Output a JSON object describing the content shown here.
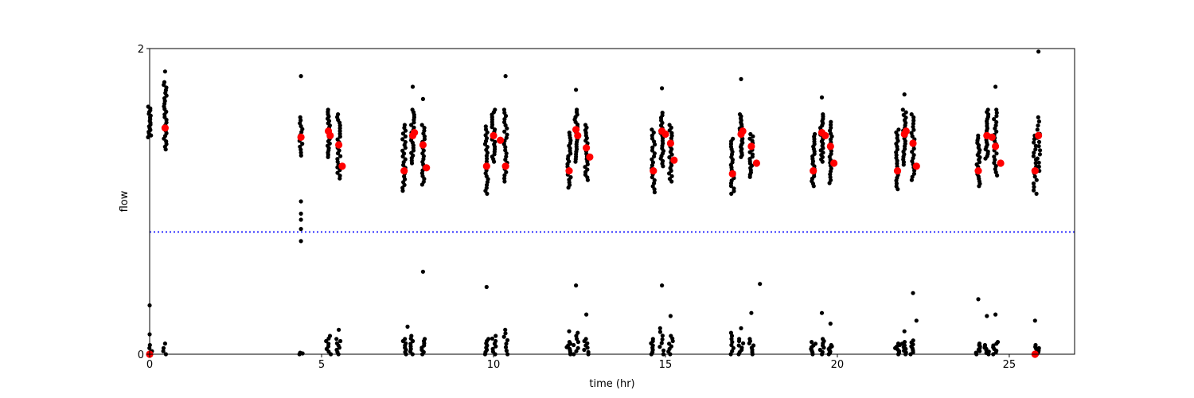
{
  "chart_data": {
    "type": "scatter",
    "xlabel": "time (hr)",
    "ylabel": "flow",
    "xlim": [
      0,
      26.9
    ],
    "ylim": [
      0,
      2
    ],
    "x_ticks": [
      0,
      5,
      10,
      15,
      20,
      25
    ],
    "y_ticks": [
      0,
      2
    ],
    "grid": false,
    "legend": "none",
    "reference_line": {
      "y": 0.8,
      "style": "dotted",
      "color": "#0000ff"
    },
    "colors": {
      "raw": "#000000",
      "summary": "#ff0000"
    },
    "raw_clusters": [
      {
        "x": 0.0,
        "y_low": 1.42,
        "y_high": 1.62,
        "n": 18
      },
      {
        "x": 0.45,
        "y_low": 1.34,
        "y_high": 1.78,
        "n": 26
      },
      {
        "x": 4.4,
        "y_low": 1.3,
        "y_high": 1.55,
        "n": 14
      },
      {
        "x": 5.2,
        "y_low": 1.29,
        "y_high": 1.6,
        "n": 22
      },
      {
        "x": 5.5,
        "y_low": 1.15,
        "y_high": 1.57,
        "n": 24
      },
      {
        "x": 7.4,
        "y_low": 1.07,
        "y_high": 1.5,
        "n": 24
      },
      {
        "x": 7.65,
        "y_low": 1.25,
        "y_high": 1.6,
        "n": 22
      },
      {
        "x": 7.95,
        "y_low": 1.11,
        "y_high": 1.5,
        "n": 22
      },
      {
        "x": 9.8,
        "y_low": 1.05,
        "y_high": 1.49,
        "n": 24
      },
      {
        "x": 10.0,
        "y_low": 1.26,
        "y_high": 1.6,
        "n": 22
      },
      {
        "x": 10.35,
        "y_low": 1.13,
        "y_high": 1.6,
        "n": 24
      },
      {
        "x": 12.2,
        "y_low": 1.09,
        "y_high": 1.45,
        "n": 22
      },
      {
        "x": 12.4,
        "y_low": 1.26,
        "y_high": 1.6,
        "n": 22
      },
      {
        "x": 12.7,
        "y_low": 1.14,
        "y_high": 1.5,
        "n": 22
      },
      {
        "x": 14.65,
        "y_low": 1.06,
        "y_high": 1.47,
        "n": 22
      },
      {
        "x": 14.9,
        "y_low": 1.23,
        "y_high": 1.58,
        "n": 22
      },
      {
        "x": 15.15,
        "y_low": 1.13,
        "y_high": 1.5,
        "n": 22
      },
      {
        "x": 16.95,
        "y_low": 1.05,
        "y_high": 1.41,
        "n": 22
      },
      {
        "x": 17.2,
        "y_low": 1.29,
        "y_high": 1.57,
        "n": 22
      },
      {
        "x": 17.5,
        "y_low": 1.16,
        "y_high": 1.44,
        "n": 20
      },
      {
        "x": 19.3,
        "y_low": 1.1,
        "y_high": 1.44,
        "n": 22
      },
      {
        "x": 19.55,
        "y_low": 1.26,
        "y_high": 1.57,
        "n": 22
      },
      {
        "x": 19.8,
        "y_low": 1.12,
        "y_high": 1.52,
        "n": 22
      },
      {
        "x": 21.75,
        "y_low": 1.08,
        "y_high": 1.47,
        "n": 22
      },
      {
        "x": 21.95,
        "y_low": 1.24,
        "y_high": 1.6,
        "n": 22
      },
      {
        "x": 22.2,
        "y_low": 1.14,
        "y_high": 1.57,
        "n": 22
      },
      {
        "x": 24.1,
        "y_low": 1.1,
        "y_high": 1.43,
        "n": 22
      },
      {
        "x": 24.35,
        "y_low": 1.28,
        "y_high": 1.6,
        "n": 22
      },
      {
        "x": 24.6,
        "y_low": 1.17,
        "y_high": 1.6,
        "n": 22
      },
      {
        "x": 25.75,
        "y_low": 1.05,
        "y_high": 1.43,
        "n": 18
      },
      {
        "x": 25.85,
        "y_low": 1.2,
        "y_high": 1.55,
        "n": 14
      }
    ],
    "raw_points": [
      [
        0.45,
        1.85
      ],
      [
        4.4,
        1.82
      ],
      [
        4.4,
        1.0
      ],
      [
        4.4,
        0.92
      ],
      [
        4.4,
        0.88
      ],
      [
        4.4,
        0.82
      ],
      [
        4.4,
        0.74
      ],
      [
        7.65,
        1.75
      ],
      [
        7.95,
        1.67
      ],
      [
        10.35,
        1.82
      ],
      [
        12.4,
        1.73
      ],
      [
        14.9,
        1.74
      ],
      [
        17.2,
        1.8
      ],
      [
        19.55,
        1.68
      ],
      [
        21.95,
        1.7
      ],
      [
        24.6,
        1.75
      ],
      [
        25.85,
        1.98
      ],
      [
        0.0,
        0.32
      ],
      [
        0.0,
        0.13
      ],
      [
        0.45,
        0.07
      ],
      [
        7.95,
        0.54
      ],
      [
        9.8,
        0.44
      ],
      [
        12.4,
        0.45
      ],
      [
        12.7,
        0.26
      ],
      [
        14.9,
        0.45
      ],
      [
        15.15,
        0.25
      ],
      [
        17.2,
        0.17
      ],
      [
        17.5,
        0.27
      ],
      [
        17.75,
        0.46
      ],
      [
        19.55,
        0.27
      ],
      [
        19.8,
        0.2
      ],
      [
        21.95,
        0.15
      ],
      [
        22.2,
        0.4
      ],
      [
        22.3,
        0.22
      ],
      [
        24.1,
        0.36
      ],
      [
        24.35,
        0.25
      ],
      [
        24.6,
        0.26
      ],
      [
        25.75,
        0.22
      ],
      [
        7.5,
        0.18
      ],
      [
        12.2,
        0.15
      ],
      [
        5.5,
        0.16
      ]
    ],
    "zero_clusters": [
      {
        "x": 0.0,
        "y_high": 0.06,
        "n": 4
      },
      {
        "x": 0.45,
        "y_high": 0.04,
        "n": 3
      },
      {
        "x": 4.4,
        "y_high": 0.01,
        "n": 3
      },
      {
        "x": 5.2,
        "y_high": 0.12,
        "n": 8
      },
      {
        "x": 5.5,
        "y_high": 0.1,
        "n": 8
      },
      {
        "x": 7.4,
        "y_high": 0.1,
        "n": 8
      },
      {
        "x": 7.65,
        "y_high": 0.12,
        "n": 8
      },
      {
        "x": 7.95,
        "y_high": 0.1,
        "n": 8
      },
      {
        "x": 9.8,
        "y_high": 0.1,
        "n": 8
      },
      {
        "x": 10.0,
        "y_high": 0.12,
        "n": 8
      },
      {
        "x": 10.35,
        "y_high": 0.16,
        "n": 8
      },
      {
        "x": 12.2,
        "y_high": 0.08,
        "n": 8
      },
      {
        "x": 12.4,
        "y_high": 0.14,
        "n": 8
      },
      {
        "x": 12.7,
        "y_high": 0.1,
        "n": 8
      },
      {
        "x": 14.65,
        "y_high": 0.1,
        "n": 8
      },
      {
        "x": 14.9,
        "y_high": 0.17,
        "n": 8
      },
      {
        "x": 15.15,
        "y_high": 0.12,
        "n": 8
      },
      {
        "x": 16.95,
        "y_high": 0.14,
        "n": 8
      },
      {
        "x": 17.2,
        "y_high": 0.1,
        "n": 8
      },
      {
        "x": 17.5,
        "y_high": 0.1,
        "n": 8
      },
      {
        "x": 19.3,
        "y_high": 0.08,
        "n": 8
      },
      {
        "x": 19.55,
        "y_high": 0.1,
        "n": 8
      },
      {
        "x": 19.8,
        "y_high": 0.06,
        "n": 8
      },
      {
        "x": 21.75,
        "y_high": 0.07,
        "n": 8
      },
      {
        "x": 21.95,
        "y_high": 0.08,
        "n": 8
      },
      {
        "x": 22.2,
        "y_high": 0.09,
        "n": 8
      },
      {
        "x": 24.1,
        "y_high": 0.07,
        "n": 8
      },
      {
        "x": 24.35,
        "y_high": 0.06,
        "n": 8
      },
      {
        "x": 24.6,
        "y_high": 0.08,
        "n": 8
      },
      {
        "x": 25.75,
        "y_high": 0.06,
        "n": 6
      },
      {
        "x": 25.85,
        "y_high": 0.04,
        "n": 6
      }
    ],
    "summary_points": [
      [
        0.0,
        0.0
      ],
      [
        0.45,
        1.48
      ],
      [
        4.4,
        1.42
      ],
      [
        5.2,
        1.46
      ],
      [
        5.25,
        1.43
      ],
      [
        5.5,
        1.37
      ],
      [
        5.6,
        1.23
      ],
      [
        7.4,
        1.2
      ],
      [
        7.65,
        1.43
      ],
      [
        7.7,
        1.45
      ],
      [
        7.95,
        1.37
      ],
      [
        8.05,
        1.22
      ],
      [
        9.8,
        1.23
      ],
      [
        10.0,
        1.43
      ],
      [
        10.2,
        1.4
      ],
      [
        10.35,
        1.23
      ],
      [
        12.2,
        1.2
      ],
      [
        12.4,
        1.47
      ],
      [
        12.45,
        1.43
      ],
      [
        12.7,
        1.35
      ],
      [
        12.8,
        1.29
      ],
      [
        14.65,
        1.2
      ],
      [
        14.9,
        1.46
      ],
      [
        15.0,
        1.44
      ],
      [
        15.15,
        1.38
      ],
      [
        15.25,
        1.27
      ],
      [
        16.95,
        1.18
      ],
      [
        17.2,
        1.44
      ],
      [
        17.25,
        1.46
      ],
      [
        17.5,
        1.36
      ],
      [
        17.65,
        1.25
      ],
      [
        19.3,
        1.2
      ],
      [
        19.55,
        1.45
      ],
      [
        19.65,
        1.43
      ],
      [
        19.8,
        1.36
      ],
      [
        19.9,
        1.25
      ],
      [
        21.75,
        1.2
      ],
      [
        21.95,
        1.44
      ],
      [
        22.0,
        1.46
      ],
      [
        22.2,
        1.38
      ],
      [
        22.3,
        1.23
      ],
      [
        24.1,
        1.2
      ],
      [
        24.35,
        1.43
      ],
      [
        24.5,
        1.42
      ],
      [
        24.6,
        1.36
      ],
      [
        24.75,
        1.25
      ],
      [
        25.75,
        1.2
      ],
      [
        25.85,
        1.43
      ],
      [
        25.75,
        0.0
      ]
    ]
  }
}
